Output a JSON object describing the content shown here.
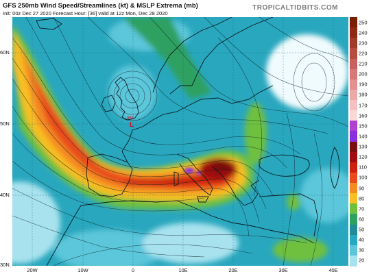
{
  "header": {
    "title": "GFS 250mb Wind Speed/Streamlines (kt) & MSLP Extrema (mb)",
    "subtitle": "Init: 00z Dec 27 2020   Forecast Hour: [36]   valid at 12z Mon, Dec 28 2020",
    "brand": "TROPICALTIDBITS.COM"
  },
  "axes": {
    "lat_labels": [
      "60N",
      "50N",
      "40N",
      "30N"
    ],
    "lon_labels": [
      "20W",
      "10W",
      "0",
      "10E",
      "20E",
      "30E",
      "40E"
    ]
  },
  "colorbar": {
    "labels": [
      "250",
      "240",
      "230",
      "220",
      "210",
      "200",
      "190",
      "180",
      "170",
      "160",
      "150",
      "140",
      "130",
      "120",
      "110",
      "100",
      "90",
      "80",
      "70",
      "60",
      "50",
      "40",
      "30",
      "20"
    ],
    "colors": [
      "#7a1f00",
      "#8e2a14",
      "#a23a2a",
      "#b64c40",
      "#c86060",
      "#d87878",
      "#e49090",
      "#eda8a8",
      "#f4c0c0",
      "#f9d8d8",
      "#b040d0",
      "#8830e0",
      "#7a0f10",
      "#a00d10",
      "#cc2010",
      "#e84a1a",
      "#f48a20",
      "#f8c020",
      "#70c040",
      "#2ea060",
      "#208c98",
      "#26a9c0",
      "#5cc6da",
      "#a8e2ee"
    ]
  },
  "map_annotations": {
    "low_pressure_symbol": "L",
    "low_pressure_value": "984"
  }
}
